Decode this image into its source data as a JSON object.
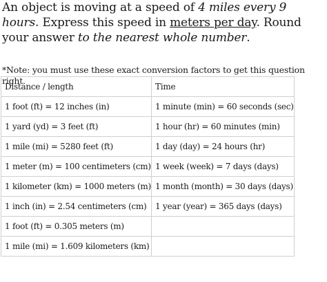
{
  "question": {
    "p1": "An object is moving at a speed of ",
    "rate": "4 miles every 9 hours",
    "p2": ". Express this speed in ",
    "unit": "meters per day",
    "p3": ". Round your answer ",
    "rounding": "to the nearest whole number",
    "p4": "."
  },
  "note": "*Note: you must use these exact conversion factors to get this question right.",
  "table": {
    "headers": [
      "Distance / length",
      "Time"
    ],
    "rows": [
      [
        "1 foot (ft) = 12 inches (in)",
        "1 minute (min) = 60 seconds (sec)"
      ],
      [
        "1 yard (yd) = 3 feet (ft)",
        "1 hour (hr) = 60 minutes (min)"
      ],
      [
        "1 mile (mi) = 5280 feet (ft)",
        "1 day (day) = 24 hours (hr)"
      ],
      [
        "1 meter (m) = 100 centimeters (cm)",
        "1 week (week) = 7 days (days)"
      ],
      [
        "1 kilometer (km) = 1000 meters (m)",
        "1 month (month) = 30 days (days)"
      ],
      [
        "1 inch (in) = 2.54 centimeters (cm)",
        "1 year (year) = 365 days (days)"
      ],
      [
        "1 foot (ft) = 0.305 meters (m)",
        ""
      ],
      [
        "1 mile (mi) = 1.609 kilometers (km)",
        ""
      ]
    ]
  }
}
